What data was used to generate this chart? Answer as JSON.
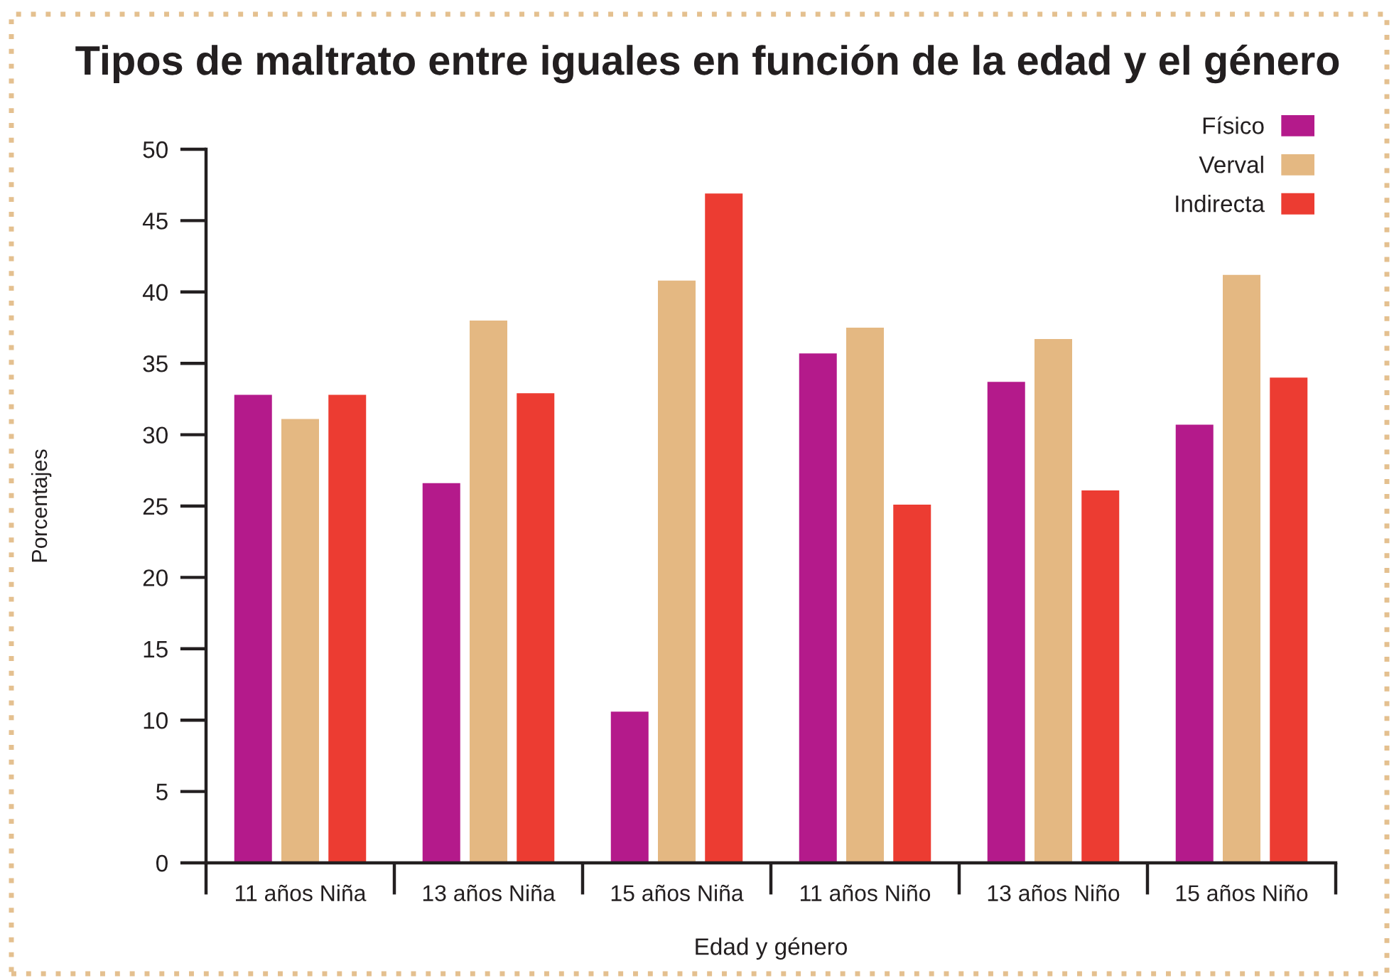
{
  "chart_data": {
    "type": "bar",
    "title": "Tipos de maltrato entre iguales en función de la edad y el género",
    "xlabel": "Edad y género",
    "ylabel": "Porcentajes",
    "categories": [
      "11 años Niña",
      "13 años Niña",
      "15 años Niña",
      "11 años Niño",
      "13 años Niño",
      "15 años Niño"
    ],
    "series": [
      {
        "name": "Físico",
        "color": "#b41a8b",
        "values": [
          32.8,
          26.6,
          10.6,
          35.7,
          33.7,
          30.7
        ]
      },
      {
        "name": "Verval",
        "color": "#e4b882",
        "values": [
          31.1,
          38.0,
          40.8,
          37.5,
          36.7,
          41.2
        ]
      },
      {
        "name": "Indirecta",
        "color": "#ec3c32",
        "values": [
          32.8,
          32.9,
          46.9,
          25.1,
          26.1,
          34.0
        ]
      }
    ],
    "ylim": [
      0,
      50
    ],
    "yticks": [
      0,
      5,
      10,
      15,
      20,
      25,
      30,
      35,
      40,
      45,
      50
    ],
    "legend": "top right"
  }
}
